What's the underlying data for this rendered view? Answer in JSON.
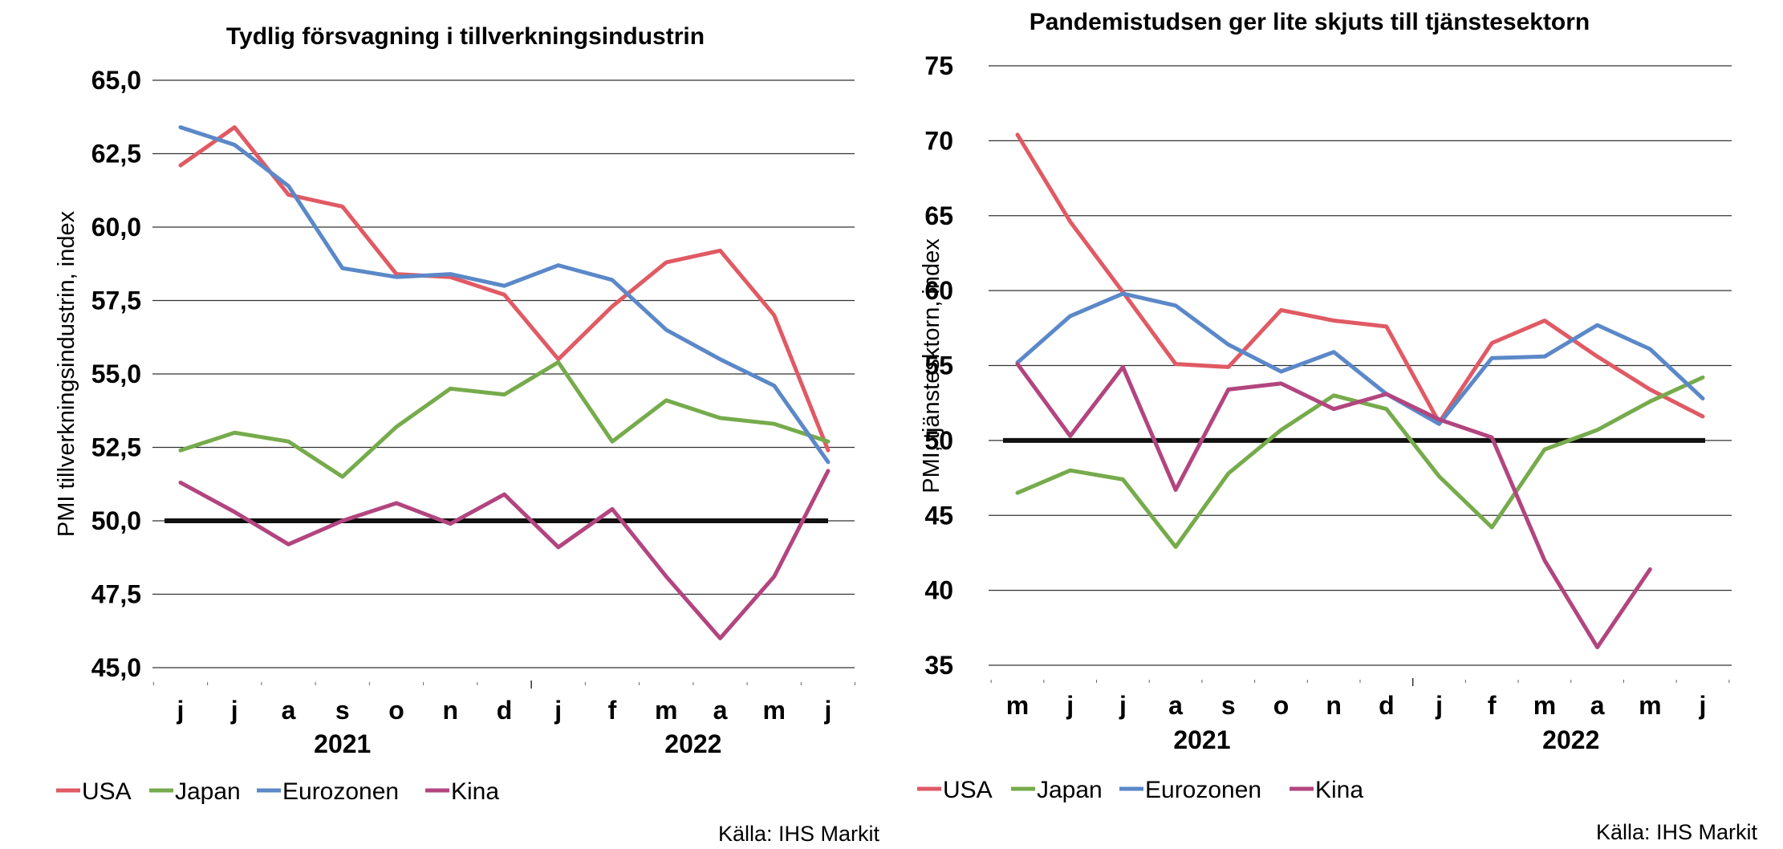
{
  "colors": {
    "USA": "#e05a64",
    "Japan": "#76ab4c",
    "Eurozonen": "#5b88c8",
    "Kina": "#b2457f",
    "reference": "#111111",
    "grid": "#333333"
  },
  "chart_data": [
    {
      "type": "line",
      "title": "Tydlig försvagning i tillverkningsindustrin",
      "ylabel": "PMI tillverkningsindustrin, index",
      "xlabel": "",
      "categories": [
        "j",
        "j",
        "a",
        "s",
        "o",
        "n",
        "d",
        "j",
        "f",
        "m",
        "a",
        "m",
        "j"
      ],
      "year_labels": [
        {
          "label": "2021",
          "center_index": 3
        },
        {
          "label": "2022",
          "center_index": 9.5
        }
      ],
      "ylim": [
        45.0,
        65.0
      ],
      "yticks": [
        45.0,
        47.5,
        50.0,
        52.5,
        55.0,
        57.5,
        60.0,
        62.5,
        65.0
      ],
      "ytick_labels": [
        "45,0",
        "47,5",
        "50,0",
        "52,5",
        "55,0",
        "57,5",
        "60,0",
        "62,5",
        "65,0"
      ],
      "reference_line": 50.0,
      "grid": true,
      "legend_position": "bottom-left",
      "series": [
        {
          "name": "USA",
          "values": [
            62.1,
            63.4,
            61.1,
            60.7,
            58.4,
            58.3,
            57.7,
            55.5,
            57.3,
            58.8,
            59.2,
            57.0,
            52.4
          ]
        },
        {
          "name": "Japan",
          "values": [
            52.4,
            53.0,
            52.7,
            51.5,
            53.2,
            54.5,
            54.3,
            55.4,
            52.7,
            54.1,
            53.5,
            53.3,
            52.7
          ]
        },
        {
          "name": "Eurozonen",
          "values": [
            63.4,
            62.8,
            61.4,
            58.6,
            58.3,
            58.4,
            58.0,
            58.7,
            58.2,
            56.5,
            55.5,
            54.6,
            52.0
          ]
        },
        {
          "name": "Kina",
          "values": [
            51.3,
            50.3,
            49.2,
            50.0,
            50.6,
            49.9,
            50.9,
            49.1,
            50.4,
            48.1,
            46.0,
            48.1,
            51.7
          ]
        }
      ],
      "source": "Källa: IHS Markit"
    },
    {
      "type": "line",
      "title": "Pandemistudsen ger lite skjuts till tjänstesektorn",
      "ylabel": "PMI, tjänstesktorn, index",
      "xlabel": "",
      "categories": [
        "m",
        "j",
        "j",
        "a",
        "s",
        "o",
        "n",
        "d",
        "j",
        "f",
        "m",
        "a",
        "m",
        "j"
      ],
      "year_labels": [
        {
          "label": "2021",
          "center_index": 3.5
        },
        {
          "label": "2022",
          "center_index": 10.5
        }
      ],
      "ylim": [
        35,
        75
      ],
      "yticks": [
        35,
        40,
        45,
        50,
        55,
        60,
        65,
        70,
        75
      ],
      "ytick_labels": [
        "35",
        "40",
        "45",
        "50",
        "55",
        "60",
        "65",
        "70",
        "75"
      ],
      "reference_line": 50,
      "grid": true,
      "legend_position": "bottom-left",
      "series": [
        {
          "name": "USA",
          "values": [
            70.4,
            64.6,
            59.9,
            55.1,
            54.9,
            58.7,
            58.0,
            57.6,
            51.2,
            56.5,
            58.0,
            55.6,
            53.4,
            51.6
          ]
        },
        {
          "name": "Japan",
          "values": [
            46.5,
            48.0,
            47.4,
            42.9,
            47.8,
            50.7,
            53.0,
            52.1,
            47.6,
            44.2,
            49.4,
            50.7,
            52.6,
            54.2
          ]
        },
        {
          "name": "Eurozonen",
          "values": [
            55.2,
            58.3,
            59.8,
            59.0,
            56.4,
            54.6,
            55.9,
            53.1,
            51.1,
            55.5,
            55.6,
            57.7,
            56.1,
            52.8
          ]
        },
        {
          "name": "Kina",
          "values": [
            55.1,
            50.3,
            54.9,
            46.7,
            53.4,
            53.8,
            52.1,
            53.1,
            51.4,
            50.2,
            42.0,
            36.2,
            41.4,
            null
          ]
        }
      ],
      "source": "Källa: IHS Markit"
    }
  ]
}
